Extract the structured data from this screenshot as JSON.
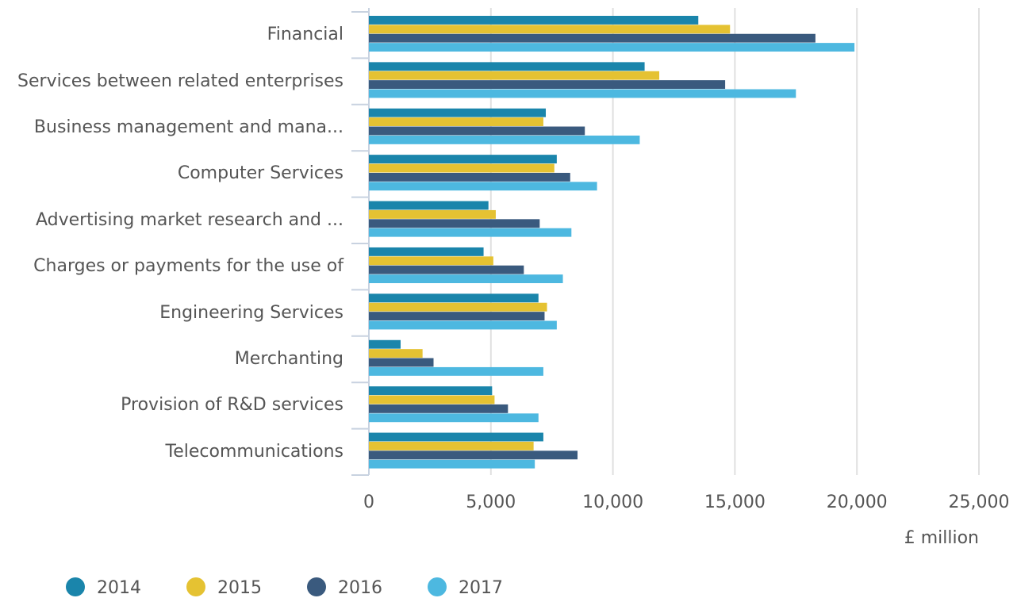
{
  "chart_data": {
    "type": "bar",
    "orientation": "horizontal",
    "xlabel": "£ million",
    "categories": [
      "Financial",
      "Services between related enterprises",
      "Business management and mana...",
      "Computer Services",
      "Advertising market research and ...",
      "Charges or payments for the use of",
      "Engineering Services",
      "Merchanting",
      "Provision of R&D services",
      "Telecommunications"
    ],
    "series": [
      {
        "name": "2014",
        "color": "#1a85ab",
        "values": [
          13500,
          11300,
          7250,
          7700,
          4900,
          4700,
          6950,
          1300,
          5050,
          7150
        ]
      },
      {
        "name": "2015",
        "color": "#e5c232",
        "values": [
          14800,
          11900,
          7150,
          7600,
          5200,
          5100,
          7300,
          2200,
          5150,
          6750
        ]
      },
      {
        "name": "2016",
        "color": "#3a5a7e",
        "values": [
          18300,
          14600,
          8850,
          8250,
          7000,
          6350,
          7200,
          2650,
          5700,
          8550
        ]
      },
      {
        "name": "2017",
        "color": "#4db8e0",
        "values": [
          19900,
          17500,
          11100,
          9350,
          8300,
          7950,
          7700,
          7150,
          6950,
          6800
        ]
      }
    ],
    "xlim": [
      0,
      25000
    ],
    "xticks": [
      0,
      {
        "value": 5000,
        "label": "5,000"
      },
      {
        "value": 10000,
        "label": "10,000"
      },
      {
        "value": 15000,
        "label": "15,000"
      },
      {
        "value": 20000,
        "label": "20,000"
      },
      {
        "value": 25000,
        "label": "25,000"
      }
    ],
    "grid": true,
    "legend": "bottom-left"
  }
}
